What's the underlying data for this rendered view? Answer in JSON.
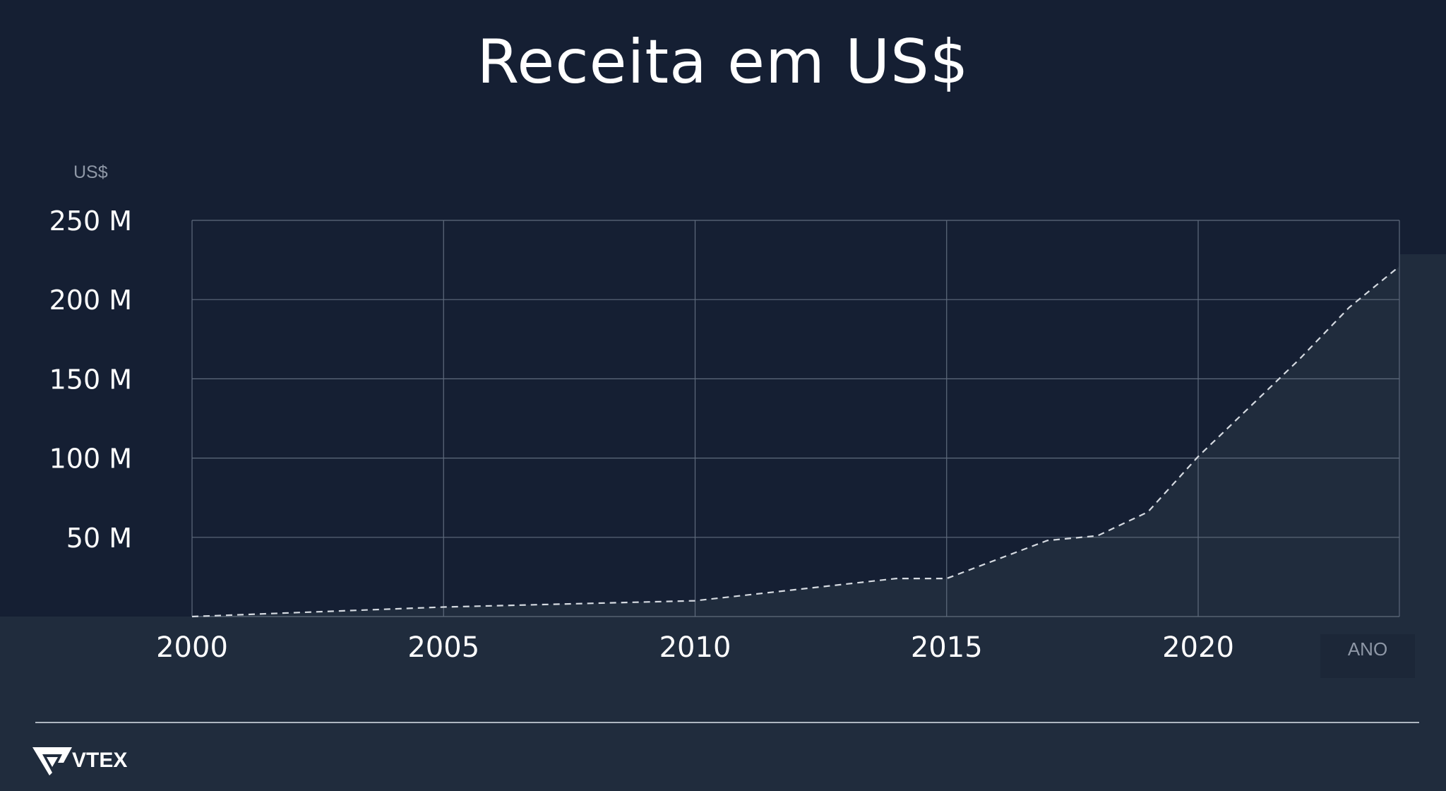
{
  "chart_data": {
    "type": "area",
    "title": "Receita em US$",
    "ylabel": "US$",
    "xlabel": "ANO",
    "x": [
      2000,
      2005,
      2010,
      2014,
      2015,
      2017,
      2018,
      2019,
      2020,
      2022,
      2023,
      2024
    ],
    "series": [
      {
        "values": [
          0,
          6,
          10,
          24,
          24,
          48,
          51,
          66,
          101,
          162,
          195,
          221
        ]
      }
    ],
    "xlim": [
      2000,
      2024
    ],
    "ylim": [
      0,
      250
    ],
    "xticks": [
      2000,
      2005,
      2010,
      2015,
      2020
    ],
    "xtick_labels": [
      "2000",
      "2005",
      "2010",
      "2015",
      "2020"
    ],
    "yticks": [
      50,
      100,
      150,
      200,
      250
    ],
    "ytick_labels": [
      "50 M",
      "100 M",
      "150 M",
      "200 M",
      "250 M"
    ],
    "grid": true,
    "line_style": "dashed",
    "colors": {
      "background": "#151f33",
      "area": "#202c3d",
      "line": "#d5dae1",
      "grid": "#5f6b7d",
      "text": "#ffffff"
    }
  },
  "footer": {
    "brand": "VTEX",
    "logo_icon": "vtex-logo-icon"
  }
}
